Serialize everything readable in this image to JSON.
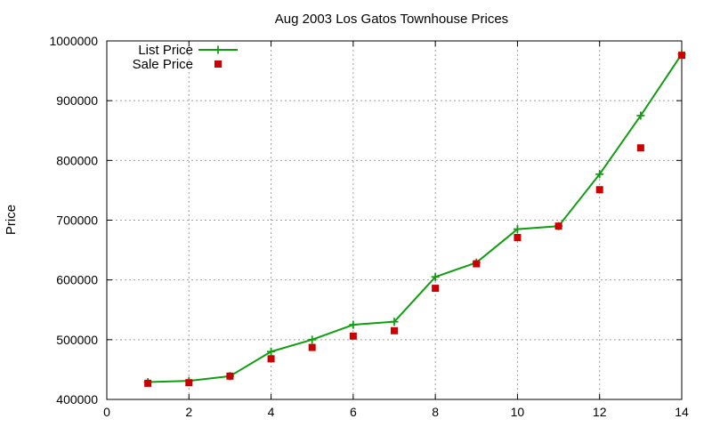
{
  "chart_data": {
    "type": "line",
    "title": "Aug 2003 Los Gatos Townhouse Prices",
    "xlabel": "",
    "ylabel": "Price",
    "xlim": [
      0,
      14
    ],
    "ylim": [
      400000,
      1000000
    ],
    "x_ticks": [
      0,
      2,
      4,
      6,
      8,
      10,
      12,
      14
    ],
    "y_ticks": [
      400000,
      500000,
      600000,
      700000,
      800000,
      900000,
      1000000
    ],
    "grid": true,
    "legend_position": "top-left",
    "series": [
      {
        "name": "List Price",
        "style": "line-points",
        "marker": "plus",
        "color": "#109e10",
        "x": [
          1,
          2,
          3,
          4,
          5,
          6,
          7,
          8,
          9,
          10,
          11,
          12,
          13,
          14
        ],
        "values": [
          429000,
          431000,
          439000,
          480000,
          500000,
          525000,
          530000,
          605000,
          629000,
          685000,
          690000,
          777000,
          875000,
          978000
        ]
      },
      {
        "name": "Sale Price",
        "style": "points",
        "marker": "square",
        "color": "#cc0000",
        "x": [
          1,
          2,
          3,
          4,
          5,
          6,
          7,
          8,
          9,
          10,
          11,
          12,
          13,
          14
        ],
        "values": [
          427000,
          428000,
          439000,
          468000,
          487000,
          506000,
          515000,
          586000,
          627000,
          671000,
          690000,
          751000,
          821000,
          976000
        ]
      }
    ]
  }
}
